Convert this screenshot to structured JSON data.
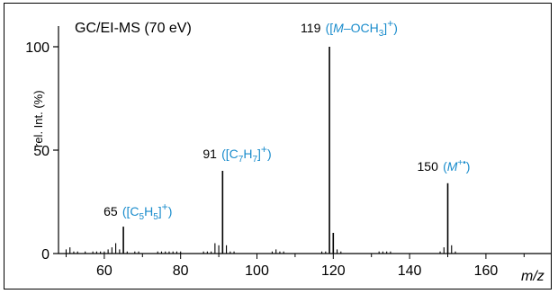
{
  "chart_data": {
    "type": "bar",
    "title": "GC/EI-MS (70 eV)",
    "xlabel": "m/z",
    "ylabel": "rel. Int. (%)",
    "xlim": [
      48,
      177
    ],
    "ylim": [
      0,
      110
    ],
    "xticks": [
      60,
      80,
      100,
      120,
      140,
      160
    ],
    "yticks": [
      0,
      50,
      100
    ],
    "grid": false,
    "colors": {
      "peaks": "#000000",
      "ion_labels": "#1a8ccc"
    },
    "peaks": [
      {
        "x": 50,
        "y": 2
      },
      {
        "x": 51,
        "y": 3
      },
      {
        "x": 52,
        "y": 1
      },
      {
        "x": 53,
        "y": 1
      },
      {
        "x": 55,
        "y": 1
      },
      {
        "x": 57,
        "y": 1
      },
      {
        "x": 58,
        "y": 1
      },
      {
        "x": 59,
        "y": 1
      },
      {
        "x": 60,
        "y": 1
      },
      {
        "x": 61,
        "y": 2
      },
      {
        "x": 62,
        "y": 3
      },
      {
        "x": 63,
        "y": 5
      },
      {
        "x": 64,
        "y": 2
      },
      {
        "x": 65,
        "y": 13
      },
      {
        "x": 66,
        "y": 1
      },
      {
        "x": 68,
        "y": 1
      },
      {
        "x": 69,
        "y": 1
      },
      {
        "x": 74,
        "y": 1
      },
      {
        "x": 75,
        "y": 1
      },
      {
        "x": 76,
        "y": 1
      },
      {
        "x": 77,
        "y": 1
      },
      {
        "x": 78,
        "y": 1
      },
      {
        "x": 79,
        "y": 1
      },
      {
        "x": 80,
        "y": 1
      },
      {
        "x": 86,
        "y": 1
      },
      {
        "x": 87,
        "y": 1
      },
      {
        "x": 88,
        "y": 1
      },
      {
        "x": 89,
        "y": 5
      },
      {
        "x": 90,
        "y": 4
      },
      {
        "x": 91,
        "y": 40
      },
      {
        "x": 92,
        "y": 4
      },
      {
        "x": 93,
        "y": 1
      },
      {
        "x": 94,
        "y": 1
      },
      {
        "x": 104,
        "y": 1
      },
      {
        "x": 105,
        "y": 2
      },
      {
        "x": 106,
        "y": 1
      },
      {
        "x": 107,
        "y": 1
      },
      {
        "x": 117,
        "y": 1
      },
      {
        "x": 118,
        "y": 1
      },
      {
        "x": 119,
        "y": 100
      },
      {
        "x": 120,
        "y": 10
      },
      {
        "x": 121,
        "y": 2
      },
      {
        "x": 122,
        "y": 1
      },
      {
        "x": 132,
        "y": 1
      },
      {
        "x": 133,
        "y": 1
      },
      {
        "x": 134,
        "y": 1
      },
      {
        "x": 135,
        "y": 1
      },
      {
        "x": 148,
        "y": 1
      },
      {
        "x": 149,
        "y": 3
      },
      {
        "x": 150,
        "y": 34
      },
      {
        "x": 151,
        "y": 4
      },
      {
        "x": 152,
        "y": 1
      }
    ],
    "annotations": [
      {
        "mz": "65",
        "ion": "([C5H5]+)",
        "x": 65,
        "y": 13
      },
      {
        "mz": "91",
        "ion": "([C7H7]+)",
        "x": 91,
        "y": 40
      },
      {
        "mz": "119",
        "ion": "([M–OCH3]+)",
        "x": 119,
        "y": 100
      },
      {
        "mz": "150",
        "ion": "(M+•)",
        "x": 150,
        "y": 34
      }
    ]
  }
}
